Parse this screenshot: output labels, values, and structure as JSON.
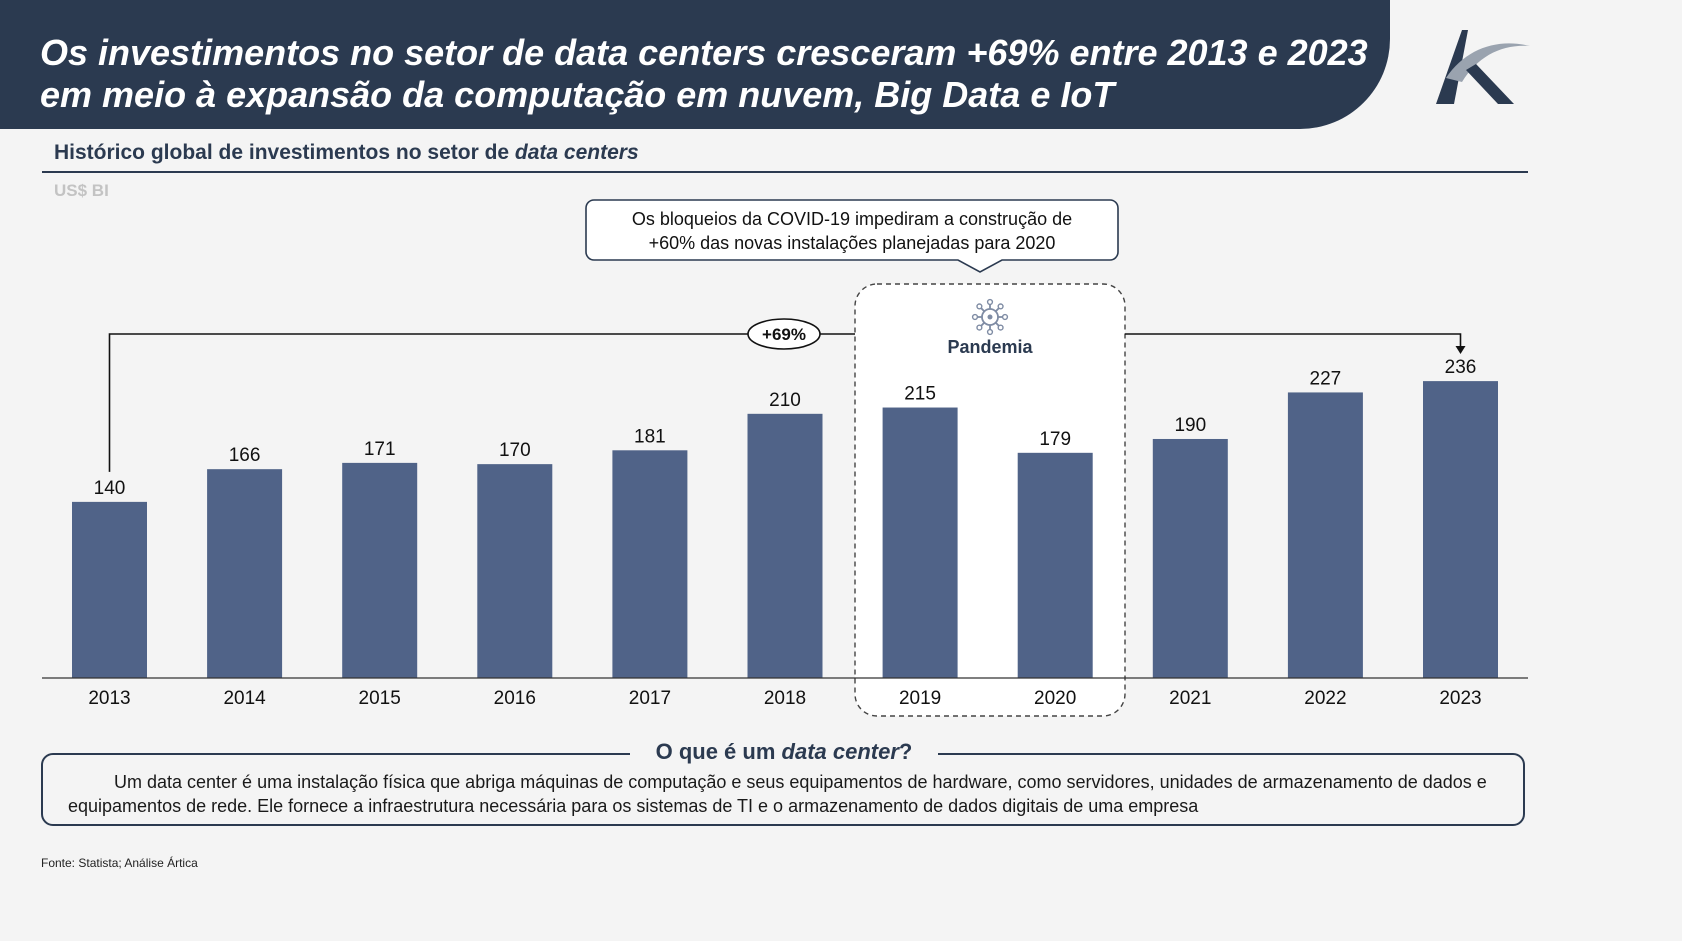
{
  "header": {
    "title": "Os investimentos no setor de data centers cresceram +69% entre 2013 e 2023 em meio à expansão da computação em nuvem, Big Data e IoT"
  },
  "logo": {
    "icon": "arctic-logo-icon",
    "color_dark": "#2b3a50",
    "color_light": "#9aa3af"
  },
  "subtitle": {
    "prefix": "Histórico global de investimentos no setor de ",
    "emphasis": "data centers"
  },
  "unit_label": "US$ BI",
  "chart_data": {
    "type": "bar",
    "title": "Histórico global de investimentos no setor de data centers",
    "ylabel": "US$ BI",
    "xlabel": "",
    "ylim": [
      0,
      250
    ],
    "grid": false,
    "categories": [
      "2013",
      "2014",
      "2015",
      "2016",
      "2017",
      "2018",
      "2019",
      "2020",
      "2021",
      "2022",
      "2023"
    ],
    "series": [
      {
        "name": "Investimentos",
        "values": [
          140,
          166,
          171,
          170,
          181,
          210,
          215,
          179,
          190,
          227,
          236
        ]
      }
    ],
    "bar_color": "#506388",
    "annotations": {
      "growth_label": "+69%",
      "growth_from": "2013",
      "growth_to": "2023",
      "highlight_label": "Pandemia",
      "highlight_icon": "virus-icon",
      "highlight_categories": [
        "2019",
        "2020"
      ],
      "callout_lines": [
        "Os bloqueios da COVID-19 impediram a construção de",
        "+60% das novas instalações planejadas para 2020"
      ]
    }
  },
  "definition": {
    "heading_prefix": "O que é um ",
    "heading_emphasis": "data center",
    "heading_suffix": "?",
    "text": "Um data center é uma instalação física que abriga máquinas de computação e seus equipamentos de hardware, como servidores, unidades de armazenamento de dados e equipamentos de rede. Ele fornece a infraestrutura necessária para os sistemas de TI e o armazenamento de dados digitais de uma empresa"
  },
  "source": "Fonte: Statista; Análise Ártica"
}
